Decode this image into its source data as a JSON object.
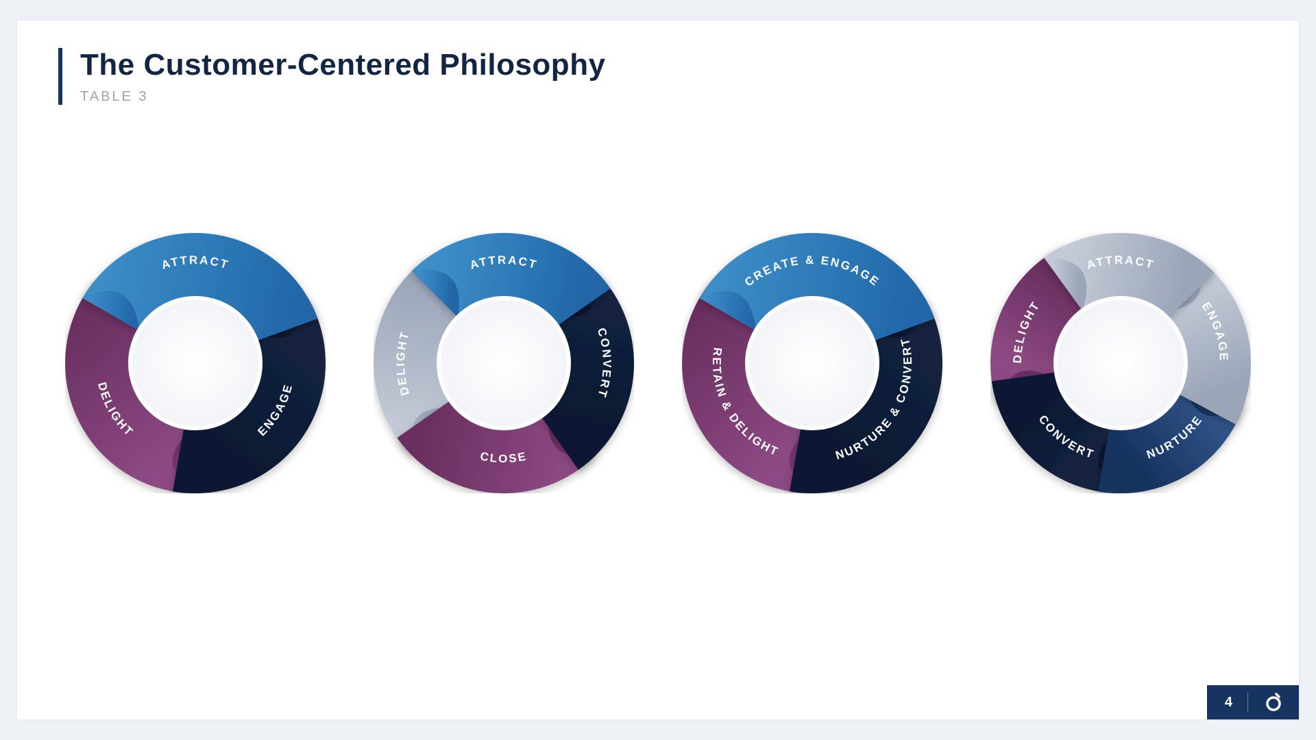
{
  "page_bg": "#eef2f7",
  "slide_bg": "#ffffff",
  "title_accent": "#17335f",
  "title": "The Customer-Centered Philosophy",
  "title_color": "#122543",
  "title_fontsize": 44,
  "subtitle": "TABLE 3",
  "subtitle_color": "#9aa5b3",
  "subtitle_fontsize": 20,
  "wheel": {
    "outer_radius": 190,
    "inner_radius": 95,
    "label_radius": 145,
    "label_color": "#ffffff",
    "label_fontsize": 17,
    "label_letter_spacing": 2.5,
    "inner_fill": "#f2f4f7",
    "inner_stroke": "#ffffff",
    "inner_stroke_width": 6
  },
  "palette": {
    "blue": [
      "#3d8ec8",
      "#2066a8"
    ],
    "navy": [
      "#13233f",
      "#0b1730"
    ],
    "darkblue": [
      "#2f5286",
      "#17335f"
    ],
    "magenta": [
      "#8c4a83",
      "#6a2f60"
    ],
    "silver": [
      "#c3cad6",
      "#9aa5b8"
    ]
  },
  "wheels": [
    {
      "segments": [
        {
          "label": "ATTRACT",
          "color": "blue"
        },
        {
          "label": "ENGAGE",
          "color": "navy"
        },
        {
          "label": "DELIGHT",
          "color": "magenta"
        }
      ]
    },
    {
      "segments": [
        {
          "label": "ATTRACT",
          "color": "blue"
        },
        {
          "label": "CONVERT",
          "color": "navy"
        },
        {
          "label": "CLOSE",
          "color": "magenta"
        },
        {
          "label": "DELIGHT",
          "color": "silver"
        }
      ]
    },
    {
      "segments": [
        {
          "label": "CREATE & ENGAGE",
          "color": "blue"
        },
        {
          "label": "NURTURE & CONVERT",
          "color": "navy"
        },
        {
          "label": "RETAIN & DELIGHT",
          "color": "magenta"
        }
      ]
    },
    {
      "segments": [
        {
          "label": "ATTRACT",
          "color": "silver"
        },
        {
          "label": "ENGAGE",
          "color": "silver"
        },
        {
          "label": "NURTURE",
          "color": "darkblue"
        },
        {
          "label": "CONVERT",
          "color": "navy"
        },
        {
          "label": "DELIGHT",
          "color": "magenta"
        }
      ]
    }
  ],
  "footer": {
    "bg": "#17335f",
    "page_number": "4",
    "logo_stroke": "#ffffff"
  }
}
